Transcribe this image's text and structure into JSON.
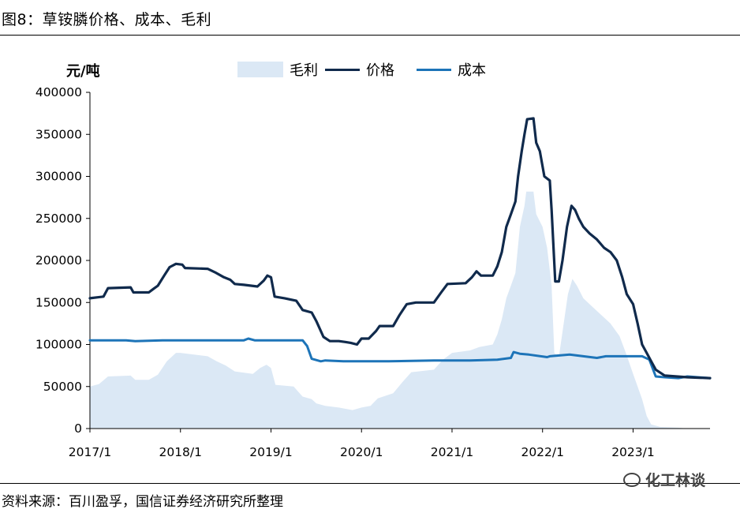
{
  "header": {
    "title": "图8：草铵膦价格、成本、毛利"
  },
  "footer": {
    "source": "资料来源：百川盈孚，国信证券经济研究所整理",
    "watermark": "化工林谈"
  },
  "chart_data": {
    "type": "line",
    "unit_label": "元/吨",
    "legend": {
      "profit": "毛利",
      "price": "价格",
      "cost": "成本"
    },
    "colors": {
      "profit": "#dbe8f5",
      "price": "#102a4c",
      "cost": "#1d74b8"
    },
    "ylim": [
      0,
      400000
    ],
    "yticks": [
      "0",
      "50000",
      "100000",
      "150000",
      "200000",
      "250000",
      "300000",
      "350000",
      "400000"
    ],
    "xlim": [
      2017.0,
      2023.85
    ],
    "xticks": [
      {
        "label": "2017/1",
        "t": 2017.0
      },
      {
        "label": "2018/1",
        "t": 2018.0
      },
      {
        "label": "2019/1",
        "t": 2019.0
      },
      {
        "label": "2020/1",
        "t": 2020.0
      },
      {
        "label": "2021/1",
        "t": 2021.0
      },
      {
        "label": "2022/1",
        "t": 2022.0
      },
      {
        "label": "2023/1",
        "t": 2023.0
      }
    ],
    "series": [
      {
        "name": "价格",
        "key": "price",
        "points": [
          [
            2017.0,
            155000
          ],
          [
            2017.15,
            157000
          ],
          [
            2017.2,
            167000
          ],
          [
            2017.45,
            168000
          ],
          [
            2017.48,
            162000
          ],
          [
            2017.65,
            162000
          ],
          [
            2017.7,
            166000
          ],
          [
            2017.75,
            170000
          ],
          [
            2017.82,
            182000
          ],
          [
            2017.88,
            192000
          ],
          [
            2017.95,
            196000
          ],
          [
            2018.02,
            195000
          ],
          [
            2018.05,
            191000
          ],
          [
            2018.3,
            190000
          ],
          [
            2018.38,
            186000
          ],
          [
            2018.48,
            180000
          ],
          [
            2018.55,
            177000
          ],
          [
            2018.6,
            172000
          ],
          [
            2018.7,
            171000
          ],
          [
            2018.85,
            169000
          ],
          [
            2018.92,
            176000
          ],
          [
            2018.96,
            182000
          ],
          [
            2019.0,
            180000
          ],
          [
            2019.04,
            157000
          ],
          [
            2019.15,
            155000
          ],
          [
            2019.28,
            152000
          ],
          [
            2019.35,
            141000
          ],
          [
            2019.45,
            138000
          ],
          [
            2019.5,
            128000
          ],
          [
            2019.58,
            109000
          ],
          [
            2019.65,
            104000
          ],
          [
            2019.75,
            104000
          ],
          [
            2019.82,
            103000
          ],
          [
            2019.88,
            102000
          ],
          [
            2019.95,
            100000
          ],
          [
            2020.0,
            107000
          ],
          [
            2020.08,
            107000
          ],
          [
            2020.16,
            116000
          ],
          [
            2020.2,
            122000
          ],
          [
            2020.35,
            122000
          ],
          [
            2020.42,
            135000
          ],
          [
            2020.5,
            148000
          ],
          [
            2020.6,
            150000
          ],
          [
            2020.8,
            150000
          ],
          [
            2020.88,
            162000
          ],
          [
            2020.95,
            172000
          ],
          [
            2021.15,
            173000
          ],
          [
            2021.22,
            180000
          ],
          [
            2021.27,
            187000
          ],
          [
            2021.32,
            182000
          ],
          [
            2021.45,
            182000
          ],
          [
            2021.5,
            193000
          ],
          [
            2021.55,
            210000
          ],
          [
            2021.6,
            240000
          ],
          [
            2021.65,
            255000
          ],
          [
            2021.7,
            270000
          ],
          [
            2021.73,
            300000
          ],
          [
            2021.77,
            330000
          ],
          [
            2021.8,
            350000
          ],
          [
            2021.83,
            368000
          ],
          [
            2021.9,
            369000
          ],
          [
            2021.93,
            340000
          ],
          [
            2021.97,
            330000
          ],
          [
            2022.02,
            300000
          ],
          [
            2022.08,
            295000
          ],
          [
            2022.1,
            260000
          ],
          [
            2022.14,
            175000
          ],
          [
            2022.18,
            175000
          ],
          [
            2022.22,
            200000
          ],
          [
            2022.27,
            240000
          ],
          [
            2022.32,
            265000
          ],
          [
            2022.36,
            260000
          ],
          [
            2022.4,
            250000
          ],
          [
            2022.45,
            240000
          ],
          [
            2022.52,
            232000
          ],
          [
            2022.6,
            225000
          ],
          [
            2022.68,
            215000
          ],
          [
            2022.75,
            210000
          ],
          [
            2022.82,
            200000
          ],
          [
            2022.88,
            180000
          ],
          [
            2022.93,
            160000
          ],
          [
            2023.0,
            148000
          ],
          [
            2023.05,
            125000
          ],
          [
            2023.1,
            100000
          ],
          [
            2023.15,
            90000
          ],
          [
            2023.2,
            80000
          ],
          [
            2023.25,
            70000
          ],
          [
            2023.35,
            63000
          ],
          [
            2023.6,
            61000
          ],
          [
            2023.85,
            60000
          ]
        ]
      },
      {
        "name": "成本",
        "key": "cost",
        "points": [
          [
            2017.0,
            105000
          ],
          [
            2017.4,
            105000
          ],
          [
            2017.5,
            104000
          ],
          [
            2017.8,
            105000
          ],
          [
            2018.2,
            105000
          ],
          [
            2018.7,
            105000
          ],
          [
            2018.75,
            107000
          ],
          [
            2018.82,
            105000
          ],
          [
            2019.2,
            105000
          ],
          [
            2019.35,
            105000
          ],
          [
            2019.4,
            98000
          ],
          [
            2019.45,
            83000
          ],
          [
            2019.55,
            80000
          ],
          [
            2019.6,
            81000
          ],
          [
            2019.8,
            80000
          ],
          [
            2020.3,
            80000
          ],
          [
            2020.8,
            81000
          ],
          [
            2021.2,
            81000
          ],
          [
            2021.5,
            82000
          ],
          [
            2021.65,
            84000
          ],
          [
            2021.68,
            91000
          ],
          [
            2021.75,
            89000
          ],
          [
            2021.85,
            88000
          ],
          [
            2022.05,
            85000
          ],
          [
            2022.08,
            86000
          ],
          [
            2022.3,
            88000
          ],
          [
            2022.6,
            84000
          ],
          [
            2022.7,
            86000
          ],
          [
            2022.9,
            86000
          ],
          [
            2023.1,
            86000
          ],
          [
            2023.18,
            82000
          ],
          [
            2023.25,
            62000
          ],
          [
            2023.35,
            61000
          ],
          [
            2023.5,
            60000
          ],
          [
            2023.6,
            62000
          ],
          [
            2023.85,
            60000
          ]
        ]
      },
      {
        "name": "毛利",
        "key": "profit",
        "points": [
          [
            2017.0,
            50000
          ],
          [
            2017.1,
            53000
          ],
          [
            2017.2,
            62000
          ],
          [
            2017.45,
            63000
          ],
          [
            2017.5,
            58000
          ],
          [
            2017.65,
            58000
          ],
          [
            2017.75,
            64000
          ],
          [
            2017.85,
            80000
          ],
          [
            2017.95,
            90000
          ],
          [
            2018.0,
            90000
          ],
          [
            2018.3,
            86000
          ],
          [
            2018.4,
            80000
          ],
          [
            2018.5,
            75000
          ],
          [
            2018.6,
            68000
          ],
          [
            2018.8,
            65000
          ],
          [
            2018.88,
            72000
          ],
          [
            2018.95,
            76000
          ],
          [
            2019.0,
            72000
          ],
          [
            2019.05,
            52000
          ],
          [
            2019.25,
            50000
          ],
          [
            2019.35,
            38000
          ],
          [
            2019.45,
            35000
          ],
          [
            2019.5,
            30000
          ],
          [
            2019.6,
            27000
          ],
          [
            2019.75,
            25000
          ],
          [
            2019.9,
            22000
          ],
          [
            2020.0,
            25000
          ],
          [
            2020.1,
            27000
          ],
          [
            2020.18,
            36000
          ],
          [
            2020.35,
            42000
          ],
          [
            2020.45,
            55000
          ],
          [
            2020.55,
            67000
          ],
          [
            2020.8,
            70000
          ],
          [
            2020.9,
            82000
          ],
          [
            2021.0,
            90000
          ],
          [
            2021.2,
            93000
          ],
          [
            2021.3,
            97000
          ],
          [
            2021.45,
            100000
          ],
          [
            2021.5,
            112000
          ],
          [
            2021.55,
            130000
          ],
          [
            2021.6,
            155000
          ],
          [
            2021.65,
            170000
          ],
          [
            2021.7,
            185000
          ],
          [
            2021.75,
            240000
          ],
          [
            2021.8,
            265000
          ],
          [
            2021.82,
            282000
          ],
          [
            2021.9,
            282000
          ],
          [
            2021.93,
            255000
          ],
          [
            2022.0,
            240000
          ],
          [
            2022.05,
            215000
          ],
          [
            2022.1,
            170000
          ],
          [
            2022.13,
            90000
          ],
          [
            2022.18,
            85000
          ],
          [
            2022.22,
            115000
          ],
          [
            2022.28,
            160000
          ],
          [
            2022.33,
            178000
          ],
          [
            2022.38,
            170000
          ],
          [
            2022.45,
            155000
          ],
          [
            2022.55,
            145000
          ],
          [
            2022.65,
            135000
          ],
          [
            2022.75,
            125000
          ],
          [
            2022.85,
            110000
          ],
          [
            2022.92,
            90000
          ],
          [
            2023.0,
            65000
          ],
          [
            2023.05,
            50000
          ],
          [
            2023.1,
            35000
          ],
          [
            2023.15,
            15000
          ],
          [
            2023.2,
            5000
          ],
          [
            2023.3,
            2000
          ],
          [
            2023.5,
            1000
          ],
          [
            2023.6,
            0
          ]
        ]
      }
    ]
  }
}
